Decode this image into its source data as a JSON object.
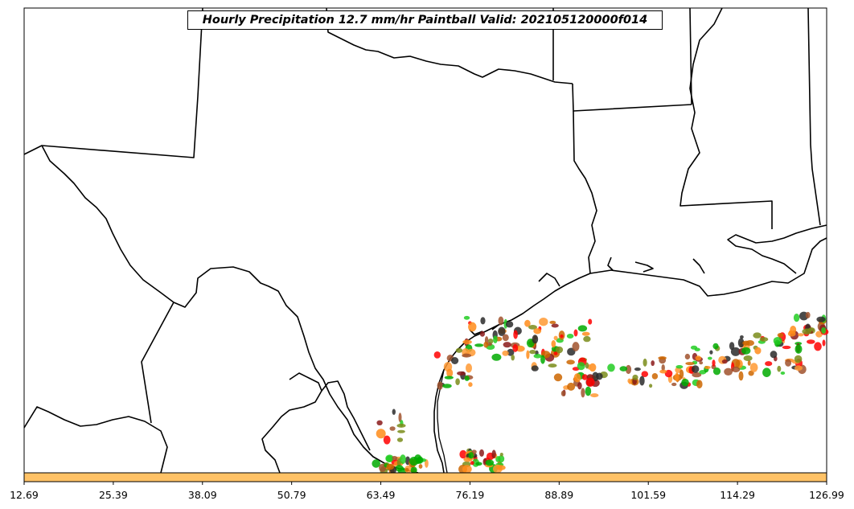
{
  "title": "Hourly Precipitation 12.7 mm/hr Paintball Valid: 202105120000f014",
  "colorbar": {
    "fill_color": "#FFC266",
    "tick_labels": [
      "12.69",
      "25.39",
      "38.09",
      "50.79",
      "63.49",
      "76.19",
      "88.89",
      "101.59",
      "114.29",
      "126.99"
    ]
  },
  "colors": {
    "coastline": "#000000",
    "paintball_palette": [
      "#FF0000",
      "#FF8C1A",
      "#22CC22",
      "#7A8C1A",
      "#8B1A1A",
      "#2A2A2A",
      "#FF9933",
      "#A0522D",
      "#00AA00",
      "#CC6600"
    ]
  },
  "map": {
    "region": "Texas / Gulf Coast",
    "features": [
      "state boundaries",
      "coastline",
      "international border"
    ]
  }
}
